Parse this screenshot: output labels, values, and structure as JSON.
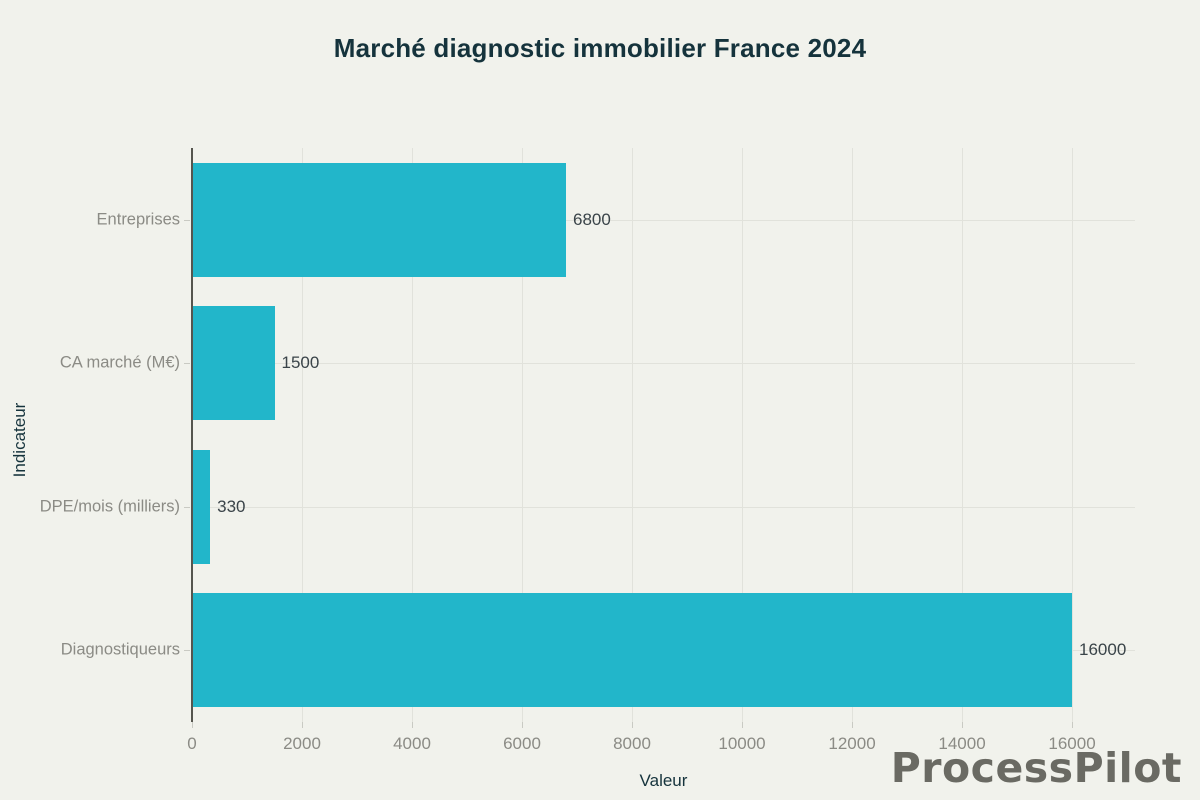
{
  "title": "Marché diagnostic immobilier France 2024",
  "watermark": "ProcessPilot",
  "colors": {
    "background": "#f1f2ec",
    "bar": "#22b6ca",
    "grid": "#e1e2db",
    "axis_line": "#55554e",
    "title_text": "#15333c",
    "tick_text": "#8b8b85",
    "value_text": "#3a4449",
    "watermark_text": "#6a6a63"
  },
  "chart_data": {
    "type": "bar",
    "orientation": "horizontal",
    "title": "Marché diagnostic immobilier France 2024",
    "categories": [
      "Entreprises",
      "CA marché (M€)",
      "DPE/mois (milliers)",
      "Diagnostiqueurs"
    ],
    "values": [
      6800,
      1500,
      330,
      16000
    ],
    "value_labels": [
      "6800",
      "1500",
      "330",
      "16000"
    ],
    "xlabel": "Valeur",
    "ylabel": "Indicateur",
    "xlim": [
      0,
      17145
    ],
    "xticks": [
      0,
      2000,
      4000,
      6000,
      8000,
      10000,
      12000,
      14000,
      16000
    ],
    "grid": true,
    "legend": "none"
  }
}
